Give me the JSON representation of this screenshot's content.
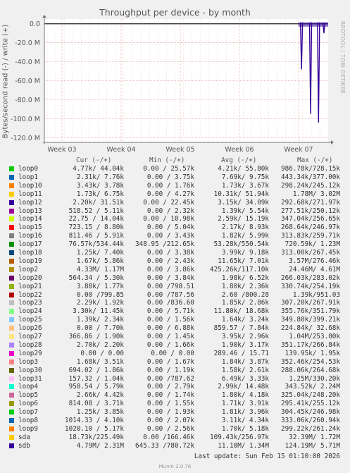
{
  "chart_data": {
    "type": "line",
    "title": "Throughput per device - by month",
    "ylabel": "Bytes/second read (-) / write (+)",
    "side_label": "RRDTOOL / TOBI OETIKER",
    "y_ticks": [
      "0.0",
      "-20.0 M",
      "-40.0 M",
      "-60.0 M",
      "-80.0 M",
      "-100.0 M",
      "-120.0 M"
    ],
    "y_tick_values": [
      0,
      -20,
      -40,
      -60,
      -80,
      -100,
      -120
    ],
    "ylim": [
      -125,
      5
    ],
    "x_ticks": [
      "Week 03",
      "Week 04",
      "Week 05",
      "Week 06",
      "Week 07"
    ],
    "grid": true,
    "spikes": [
      {
        "x": 0.906,
        "y": -48
      },
      {
        "x": 0.938,
        "y": -95
      },
      {
        "x": 0.966,
        "y": -104
      },
      {
        "x": 0.985,
        "y": -10
      }
    ],
    "legend_headers": {
      "cur": "Cur (-/+)",
      "min": "Min (-/+)",
      "avg": "Avg (-/+)",
      "max": "Max (-/+)"
    },
    "series": [
      {
        "name": "loop0",
        "color": "#00cc00",
        "cur": "4.77k/ 44.04k",
        "min": "0.00 / 25.57k",
        "avg": "4.21k/ 55.80k",
        "max": "986.78k/728.15k"
      },
      {
        "name": "loop1",
        "color": "#0066b3",
        "cur": "2.31k/ 7.76k",
        "min": "0.00 / 3.75k",
        "avg": "7.69k/ 9.75k",
        "max": "443.34k/377.00k"
      },
      {
        "name": "loop10",
        "color": "#ff8000",
        "cur": "3.43k/ 3.78k",
        "min": "0.00 / 1.76k",
        "avg": "1.73k/ 3.67k",
        "max": "298.24k/245.12k"
      },
      {
        "name": "loop11",
        "color": "#ffcc00",
        "cur": "1.73k/ 6.75k",
        "min": "0.00 / 4.27k",
        "avg": "10.31k/ 51.94k",
        "max": "1.78M/ 3.02M"
      },
      {
        "name": "loop12",
        "color": "#330099",
        "cur": "2.20k/ 31.51k",
        "min": "0.00 / 22.45k",
        "avg": "3.15k/ 34.09k",
        "max": "292.68k/271.97k"
      },
      {
        "name": "loop13",
        "color": "#990099",
        "cur": "518.52 / 5.11k",
        "min": "0.00 / 2.32k",
        "avg": "1.39k/ 5.54k",
        "max": "277.51k/250.12k"
      },
      {
        "name": "loop14",
        "color": "#ccff00",
        "cur": "22.75 / 14.04k",
        "min": "0.00 / 10.98k",
        "avg": "2.59k/ 15.19k",
        "max": "347.04k/256.65k"
      },
      {
        "name": "loop15",
        "color": "#ff0000",
        "cur": "723.15 / 8.80k",
        "min": "0.00 / 5.04k",
        "avg": "2.17k/ 8.93k",
        "max": "268.64k/246.97k"
      },
      {
        "name": "loop16",
        "color": "#808080",
        "cur": "811.46 / 5.91k",
        "min": "0.00 / 3.43k",
        "avg": "1.82k/ 5.99k",
        "max": "313.83k/259.71k"
      },
      {
        "name": "loop17",
        "color": "#008f00",
        "cur": "76.57k/534.44k",
        "min": "348.95 /212.65k",
        "avg": "53.28k/550.54k",
        "max": "720.59k/ 1.23M"
      },
      {
        "name": "loop18",
        "color": "#00487d",
        "cur": "1.25k/ 7.40k",
        "min": "0.00 / 3.38k",
        "avg": "3.99k/ 9.18k",
        "max": "313.00k/267.45k"
      },
      {
        "name": "loop19",
        "color": "#b35a00",
        "cur": "1.67k/ 5.86k",
        "min": "0.00 / 2.43k",
        "avg": "11.65k/ 7.01k",
        "max": "3.57M/276.46k"
      },
      {
        "name": "loop2",
        "color": "#b38f00",
        "cur": "4.33M/ 1.17M",
        "min": "0.00 / 3.86k",
        "avg": "425.26k/117.10k",
        "max": "24.46M/ 4.61M"
      },
      {
        "name": "loop20",
        "color": "#6b006b",
        "cur": "564.34 / 5.30k",
        "min": "0.00 / 3.84k",
        "avg": "1.98k/ 6.52k",
        "max": "266.03k/283.02k"
      },
      {
        "name": "loop21",
        "color": "#8fb300",
        "cur": "3.88k/ 1.77k",
        "min": "0.00 /798.51",
        "avg": "1.80k/ 2.36k",
        "max": "330.74k/254.19k"
      },
      {
        "name": "loop22",
        "color": "#b30000",
        "cur": "0.00 /799.85",
        "min": "0.00 /787.56",
        "avg": "2.60 /800.28",
        "max": "1.39k/951.03"
      },
      {
        "name": "loop23",
        "color": "#bebebe",
        "cur": "2.29k/ 1.92k",
        "min": "0.00 /836.60",
        "avg": "1.85k/ 2.86k",
        "max": "307.20k/267.91k"
      },
      {
        "name": "loop24",
        "color": "#80ff80",
        "cur": "3.30k/ 11.45k",
        "min": "0.00 / 5.71k",
        "avg": "11.80k/ 18.68k",
        "max": "355.76k/351.79k"
      },
      {
        "name": "loop25",
        "color": "#80c9ff",
        "cur": "1.39k/ 2.34k",
        "min": "0.00 / 1.56k",
        "avg": "1.64k/ 3.24k",
        "max": "349.80k/399.21k"
      },
      {
        "name": "loop26",
        "color": "#ffc080",
        "cur": "0.00 / 7.70k",
        "min": "0.00 / 6.88k",
        "avg": "859.57 / 7.84k",
        "max": "224.84k/ 32.68k"
      },
      {
        "name": "loop27",
        "color": "#ffe680",
        "cur": "366.86 / 1.90k",
        "min": "0.00 / 1.45k",
        "avg": "3.95k/ 2.96k",
        "max": "1.04M/253.00k"
      },
      {
        "name": "loop28",
        "color": "#aa80ff",
        "cur": "2.70k/ 2.20k",
        "min": "0.00 / 1.66k",
        "avg": "1.90k/ 3.17k",
        "max": "351.17k/266.84k"
      },
      {
        "name": "loop29",
        "color": "#ee00cc",
        "cur": "0.00 / 0.00",
        "min": "0.00 / 0.00",
        "avg": "289.46 / 15.71",
        "max": "139.95k/ 1.95k"
      },
      {
        "name": "loop3",
        "color": "#ff8080",
        "cur": "1.68k/ 3.51k",
        "min": "0.00 / 1.67k",
        "avg": "1.84k/ 3.87k",
        "max": "352.46k/254.53k"
      },
      {
        "name": "loop30",
        "color": "#666600",
        "cur": "694.02 / 1.86k",
        "min": "0.00 / 1.19k",
        "avg": "1.58k/ 2.61k",
        "max": "288.06k/264.68k"
      },
      {
        "name": "loop31",
        "color": "#ffbfff",
        "cur": "157.32 / 1.04k",
        "min": "0.00 /787.62",
        "avg": "6.49k/ 3.33k",
        "max": "1.25M/330.20k"
      },
      {
        "name": "loop4",
        "color": "#00ffcc",
        "cur": "958.54 / 5.79k",
        "min": "0.00 / 2.79k",
        "avg": "2.99k/ 14.48k",
        "max": "343.52k/ 2.24M"
      },
      {
        "name": "loop5",
        "color": "#cc6699",
        "cur": "2.66k/ 4.42k",
        "min": "0.00 / 1.74k",
        "avg": "1.80k/ 4.18k",
        "max": "325.04k/248.20k"
      },
      {
        "name": "loop6",
        "color": "#999900",
        "cur": "814.08 / 3.71k",
        "min": "0.00 / 1.55k",
        "avg": "1.71k/ 3.91k",
        "max": "295.41k/255.12k"
      },
      {
        "name": "loop7",
        "color": "#00cc00",
        "cur": "1.25k/ 3.85k",
        "min": "0.00 / 1.93k",
        "avg": "1.81k/ 3.96k",
        "max": "304.45k/246.98k"
      },
      {
        "name": "loop8",
        "color": "#0066b3",
        "cur": "1014.33 / 4.10k",
        "min": "0.00 / 2.07k",
        "avg": "3.11k/ 4.34k",
        "max": "333.06k/260.94k"
      },
      {
        "name": "loop9",
        "color": "#ff8000",
        "cur": "1020.10 / 5.17k",
        "min": "0.00 / 2.56k",
        "avg": "1.70k/ 5.18k",
        "max": "299.22k/261.24k"
      },
      {
        "name": "sda",
        "color": "#ffcc00",
        "cur": "18.73k/225.49k",
        "min": "0.00 /166.46k",
        "avg": "109.43k/256.97k",
        "max": "32.39M/ 1.72M"
      },
      {
        "name": "sdb",
        "color": "#330099",
        "cur": "4.79M/ 2.31M",
        "min": "645.33 /780.72k",
        "avg": "11.10M/ 1.34M",
        "max": "124.19M/ 5.71M"
      }
    ]
  },
  "footer": {
    "last_update": "Last update: Sun Feb 15 01:10:00 2026",
    "munin": "Munin 2.0.76"
  }
}
